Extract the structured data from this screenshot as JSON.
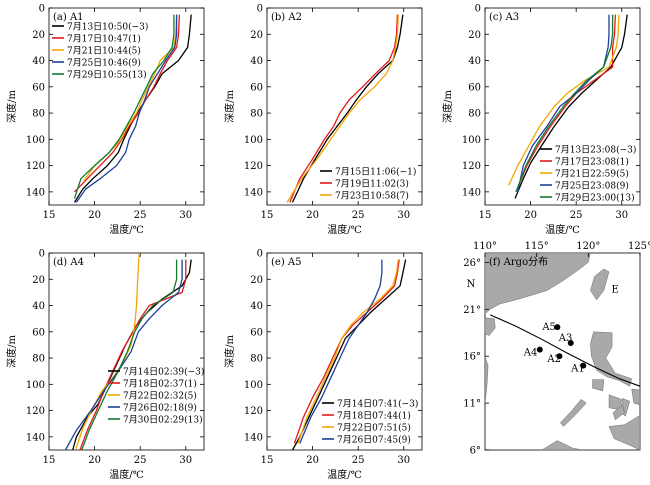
{
  "chart_data": [
    {
      "type": "line",
      "panel_label": "(a) A1",
      "xlabel": "温度/℃",
      "ylabel": "深度/m",
      "xlim": [
        15,
        32
      ],
      "ylim": [
        150,
        0
      ],
      "xticks": [
        "15",
        "20",
        "25",
        "30"
      ],
      "yticks": [
        "0",
        "20",
        "40",
        "60",
        "80",
        "100",
        "120",
        "140"
      ],
      "legend_position": "top-left",
      "series": [
        {
          "name": "7月13日10:50(−3)",
          "color": "#000000",
          "x": [
            30.6,
            30.4,
            30.2,
            29.2,
            27.4,
            26.6,
            25.6,
            24.7,
            23.9,
            23.2,
            22.6,
            21.4,
            19.8,
            18.7,
            17.8
          ],
          "y": [
            5,
            20,
            30,
            40,
            50,
            60,
            70,
            80,
            90,
            100,
            110,
            120,
            130,
            138,
            148
          ]
        },
        {
          "name": "7月17日10:47(1)",
          "color": "#e31a1c",
          "x": [
            29.3,
            29.2,
            29.0,
            28.0,
            27.2,
            26.5,
            25.6,
            24.8,
            23.8,
            23.0,
            22.0,
            20.6,
            19.2,
            17.8
          ],
          "y": [
            5,
            20,
            30,
            40,
            50,
            60,
            70,
            80,
            90,
            100,
            110,
            120,
            130,
            140
          ]
        },
        {
          "name": "7月21日10:44(5)",
          "color": "#f5a700",
          "x": [
            29.0,
            28.9,
            28.7,
            27.2,
            26.6,
            25.9,
            25.2,
            24.6,
            23.6,
            22.9,
            21.6,
            20.0,
            18.8
          ],
          "y": [
            5,
            20,
            30,
            40,
            50,
            60,
            70,
            80,
            90,
            100,
            110,
            120,
            132
          ]
        },
        {
          "name": "7月25日10:46(9)",
          "color": "#1f3f99",
          "x": [
            29.0,
            29.0,
            28.8,
            27.8,
            26.9,
            26.0,
            25.5,
            24.9,
            24.5,
            23.8,
            23.4,
            22.4,
            20.6,
            19.0,
            18.0
          ],
          "y": [
            5,
            20,
            30,
            40,
            50,
            60,
            70,
            80,
            90,
            100,
            110,
            120,
            130,
            138,
            148
          ]
        },
        {
          "name": "7月29日10:55(13)",
          "color": "#157a2f",
          "x": [
            28.7,
            28.7,
            28.5,
            27.6,
            26.4,
            25.7,
            25.0,
            24.3,
            23.5,
            22.7,
            21.6,
            20.0,
            18.5,
            17.8
          ],
          "y": [
            5,
            20,
            30,
            40,
            50,
            60,
            70,
            80,
            90,
            100,
            110,
            120,
            130,
            145
          ]
        }
      ]
    },
    {
      "type": "line",
      "panel_label": "(b) A2",
      "xlabel": "温度/℃",
      "ylabel": "深度/m",
      "xlim": [
        15,
        32
      ],
      "ylim": [
        150,
        0
      ],
      "xticks": [
        "15",
        "20",
        "25",
        "30"
      ],
      "yticks": [
        "0",
        "20",
        "40",
        "60",
        "80",
        "100",
        "120",
        "140"
      ],
      "legend_position": "bottom-right",
      "series": [
        {
          "name": "7月15日11:06(−1)",
          "color": "#000000",
          "x": [
            29.9,
            29.6,
            29.3,
            28.8,
            27.2,
            25.9,
            24.8,
            23.8,
            22.7,
            21.6,
            20.3,
            19.0,
            17.8
          ],
          "y": [
            5,
            20,
            30,
            40,
            50,
            60,
            70,
            80,
            90,
            100,
            115,
            130,
            148
          ]
        },
        {
          "name": "7月19日11:02(3)",
          "color": "#e31a1c",
          "x": [
            29.3,
            29.2,
            29.0,
            28.4,
            26.9,
            25.5,
            24.0,
            23.0,
            22.3,
            21.3,
            20.0,
            18.6,
            17.5
          ],
          "y": [
            5,
            20,
            30,
            40,
            50,
            60,
            70,
            80,
            90,
            100,
            115,
            130,
            148
          ]
        },
        {
          "name": "7月23日10:58(7)",
          "color": "#f5a700",
          "x": [
            29.4,
            29.3,
            29.1,
            28.8,
            28.1,
            26.8,
            25.2,
            24.0,
            23.0,
            22.0,
            20.5,
            18.8,
            17.2
          ],
          "y": [
            5,
            20,
            30,
            40,
            50,
            60,
            70,
            80,
            90,
            100,
            115,
            130,
            148
          ]
        }
      ]
    },
    {
      "type": "line",
      "panel_label": "(c) A3",
      "xlabel": "温度/℃",
      "ylabel": "深度/m",
      "xlim": [
        15,
        32
      ],
      "ylim": [
        150,
        0
      ],
      "xticks": [
        "15",
        "20",
        "25",
        "30"
      ],
      "yticks": [
        "0",
        "20",
        "40",
        "60",
        "80",
        "100",
        "120",
        "140"
      ],
      "legend_position": "bottom-right",
      "series": [
        {
          "name": "7月13日23:08(−3)",
          "color": "#000000",
          "x": [
            30.6,
            30.3,
            30.0,
            28.8,
            27.2,
            25.6,
            24.2,
            22.6,
            21.2,
            20.0,
            19.2,
            18.3
          ],
          "y": [
            5,
            20,
            30,
            45,
            55,
            65,
            75,
            90,
            105,
            118,
            130,
            145
          ]
        },
        {
          "name": "7月17日23:08(1)",
          "color": "#e31a1c",
          "x": [
            29.3,
            29.2,
            29.0,
            29.0,
            27.0,
            25.0,
            23.8,
            22.2,
            20.8,
            19.6,
            18.4
          ],
          "y": [
            5,
            20,
            30,
            45,
            55,
            65,
            75,
            90,
            105,
            120,
            140
          ]
        },
        {
          "name": "7月21日22:59(5)",
          "color": "#f5a700",
          "x": [
            29.7,
            29.6,
            29.4,
            28.6,
            26.0,
            24.0,
            22.6,
            21.0,
            19.8,
            18.6,
            17.6
          ],
          "y": [
            5,
            20,
            30,
            45,
            55,
            65,
            75,
            90,
            105,
            120,
            135
          ]
        },
        {
          "name": "7月25日23:08(9)",
          "color": "#1f3f99",
          "x": [
            28.6,
            28.6,
            28.5,
            28.0,
            26.4,
            25.0,
            23.2,
            21.8,
            20.2,
            19.2,
            18.6
          ],
          "y": [
            5,
            20,
            30,
            45,
            55,
            65,
            75,
            90,
            105,
            120,
            140
          ]
        },
        {
          "name": "7月29日23:00(13)",
          "color": "#157a2f",
          "x": [
            29.0,
            29.0,
            28.8,
            28.0,
            26.2,
            24.8,
            23.6,
            22.0,
            20.6,
            19.5,
            18.4
          ],
          "y": [
            5,
            20,
            30,
            45,
            55,
            65,
            75,
            90,
            105,
            120,
            140
          ]
        }
      ]
    },
    {
      "type": "line",
      "panel_label": "(d) A4",
      "xlabel": "温度/℃",
      "ylabel": "深度/m",
      "xlim": [
        15,
        32
      ],
      "ylim": [
        150,
        0
      ],
      "xticks": [
        "15",
        "20",
        "25",
        "30"
      ],
      "yticks": [
        "0",
        "20",
        "40",
        "60",
        "80",
        "100",
        "120",
        "140"
      ],
      "legend_position": "bottom-right",
      "series": [
        {
          "name": "7月14日02:39(−3)",
          "color": "#000000",
          "x": [
            30.6,
            30.4,
            29.6,
            27.4,
            25.8,
            24.6,
            23.4,
            22.4,
            21.4,
            20.4,
            19.2,
            18.0,
            17.6
          ],
          "y": [
            5,
            15,
            25,
            35,
            45,
            55,
            70,
            85,
            100,
            115,
            125,
            140,
            150
          ]
        },
        {
          "name": "7月18日02:37(1)",
          "color": "#e31a1c",
          "x": [
            30.0,
            30.0,
            29.6,
            26.0,
            25.0,
            24.2,
            23.0,
            22.0,
            21.0,
            20.2,
            19.2,
            18.4
          ],
          "y": [
            5,
            20,
            30,
            40,
            50,
            60,
            75,
            90,
            105,
            120,
            135,
            150
          ]
        },
        {
          "name": "7月22日02:32(5)",
          "color": "#f5a700",
          "x": [
            24.9,
            24.8,
            24.7,
            24.6,
            24.4,
            24.0,
            23.0,
            22.0,
            20.8,
            19.8,
            18.8,
            17.9
          ],
          "y": [
            0,
            10,
            25,
            40,
            55,
            70,
            85,
            95,
            105,
            118,
            132,
            150
          ]
        },
        {
          "name": "7月26日02:18(9)",
          "color": "#1f3f99",
          "x": [
            29.6,
            29.6,
            29.2,
            27.4,
            26.0,
            24.8,
            24.0,
            22.6,
            21.0,
            19.6,
            18.0,
            16.8
          ],
          "y": [
            5,
            20,
            30,
            40,
            50,
            60,
            75,
            90,
            105,
            120,
            135,
            150
          ]
        },
        {
          "name": "7月30日02:29(13)",
          "color": "#157a2f",
          "x": [
            29.0,
            29.0,
            28.6,
            26.4,
            25.2,
            24.4,
            23.6,
            22.6,
            21.4,
            20.4,
            19.4,
            18.6
          ],
          "y": [
            5,
            20,
            30,
            40,
            50,
            60,
            75,
            90,
            105,
            120,
            135,
            150
          ]
        }
      ]
    },
    {
      "type": "line",
      "panel_label": "(e) A5",
      "xlabel": "温度/℃",
      "ylabel": "深度/m",
      "xlim": [
        15,
        32
      ],
      "ylim": [
        150,
        0
      ],
      "xticks": [
        "15",
        "20",
        "25",
        "30"
      ],
      "yticks": [
        "0",
        "20",
        "40",
        "60",
        "80",
        "100",
        "120",
        "140"
      ],
      "legend_position": "bottom-right",
      "series": [
        {
          "name": "7月14日07:41(−3)",
          "color": "#000000",
          "x": [
            30.2,
            29.9,
            29.6,
            28.0,
            26.4,
            25.0,
            23.6,
            22.6,
            21.6,
            20.6,
            19.6,
            18.6,
            17.8
          ],
          "y": [
            5,
            15,
            25,
            35,
            45,
            55,
            65,
            80,
            95,
            110,
            125,
            140,
            150
          ]
        },
        {
          "name": "7月18日07:44(1)",
          "color": "#e31a1c",
          "x": [
            29.5,
            29.3,
            29.0,
            27.6,
            26.0,
            24.4,
            23.2,
            22.2,
            21.2,
            20.0,
            19.0,
            18.0
          ],
          "y": [
            5,
            15,
            25,
            35,
            45,
            55,
            65,
            80,
            95,
            110,
            125,
            145
          ]
        },
        {
          "name": "7月22日07:51(5)",
          "color": "#f5a700",
          "x": [
            29.4,
            29.2,
            28.8,
            27.4,
            25.6,
            24.2,
            23.2,
            22.4,
            21.4,
            20.4,
            19.4,
            18.4
          ],
          "y": [
            5,
            15,
            25,
            35,
            45,
            55,
            65,
            80,
            95,
            110,
            125,
            145
          ]
        },
        {
          "name": "7月26日07:45(9)",
          "color": "#1f3f99",
          "x": [
            27.6,
            27.6,
            27.4,
            26.8,
            26.0,
            25.0,
            24.0,
            23.0,
            22.0,
            21.0,
            19.8,
            18.6
          ],
          "y": [
            5,
            15,
            25,
            35,
            45,
            55,
            65,
            80,
            95,
            110,
            125,
            145
          ]
        }
      ]
    }
  ],
  "map": {
    "panel_label": "(f) Argo分布",
    "top_ticks": [
      "110°",
      "115°",
      "120°",
      "125°"
    ],
    "top_lon": [
      110,
      115,
      120,
      125
    ],
    "east_label": "E",
    "north_label": "N",
    "left_ticks": [
      "26°",
      "21°",
      "16°",
      "11°",
      "6°"
    ],
    "left_lat": [
      26,
      21,
      16,
      11,
      6
    ],
    "lon_range": [
      110,
      125
    ],
    "lat_range": [
      6,
      27
    ],
    "land_color": "#a9a9a9",
    "stations": [
      {
        "name": "A1",
        "lon": 119.5,
        "lat": 15.0
      },
      {
        "name": "A2",
        "lon": 117.2,
        "lat": 16.0
      },
      {
        "name": "A3",
        "lon": 118.3,
        "lat": 17.4
      },
      {
        "name": "A4",
        "lon": 115.3,
        "lat": 16.7
      },
      {
        "name": "A5",
        "lon": 117.0,
        "lat": 19.1
      }
    ],
    "track": [
      {
        "lon": 110.5,
        "lat": 20.4
      },
      {
        "lon": 113.0,
        "lat": 19.2
      },
      {
        "lon": 115.5,
        "lat": 17.8
      },
      {
        "lon": 118.0,
        "lat": 16.3
      },
      {
        "lon": 120.5,
        "lat": 14.9
      },
      {
        "lon": 123.0,
        "lat": 13.6
      },
      {
        "lon": 125.0,
        "lat": 12.8
      }
    ]
  }
}
